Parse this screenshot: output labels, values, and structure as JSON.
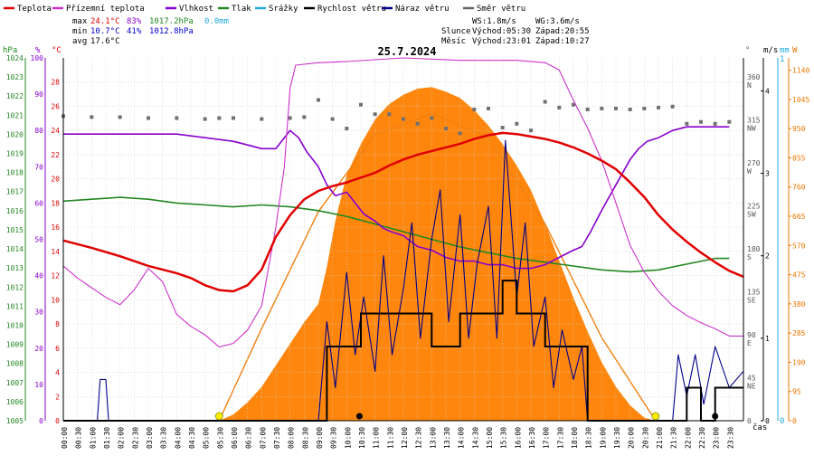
{
  "chart_data": {
    "type": "line",
    "title": "25.7.2024",
    "xlabel": "čas",
    "legend": [
      {
        "name": "Teplota",
        "color": "#e00000"
      },
      {
        "name": "Přízemní teplota",
        "color": "#cc33cc"
      },
      {
        "name": "Vlhkost",
        "color": "#8800cc"
      },
      {
        "name": "Tlak",
        "color": "#228822"
      },
      {
        "name": "Srážky",
        "color": "#22aadd"
      },
      {
        "name": "Rychlost větru",
        "color": "#000000"
      },
      {
        "name": "Náraz větru",
        "color": "#000088"
      },
      {
        "name": "Směr větru",
        "color": "#666666"
      }
    ],
    "stats": {
      "max": {
        "label": "max",
        "temp": "24.1°C",
        "hum": "83%",
        "press": "1017.2hPa",
        "rain": "0.0mm"
      },
      "min": {
        "label": "min",
        "temp": "10.7°C",
        "hum": "41%",
        "press": "1012.8hPa"
      },
      "avg": {
        "label": "avg",
        "temp": "17.6°C"
      }
    },
    "info": {
      "ws": "WS:1.8m/s",
      "wg": "WG:3.6m/s",
      "sun_label": "Slunce",
      "sunrise": "Východ:05:30",
      "sunset": "Západ:20:55",
      "moon_label": "Měsíc",
      "moonrise": "Východ:23:01",
      "moonset": "Západ:10:27"
    },
    "x_ticks": [
      "00:00",
      "00:30",
      "01:00",
      "01:30",
      "02:00",
      "02:30",
      "03:00",
      "03:30",
      "04:00",
      "04:30",
      "05:00",
      "05:30",
      "06:00",
      "06:30",
      "07:00",
      "07:30",
      "08:00",
      "08:30",
      "09:00",
      "09:30",
      "10:00",
      "10:30",
      "11:00",
      "11:30",
      "12:00",
      "12:30",
      "13:00",
      "13:30",
      "14:00",
      "14:30",
      "15:00",
      "15:30",
      "16:00",
      "16:30",
      "17:00",
      "17:30",
      "18:00",
      "18:30",
      "19:00",
      "19:30",
      "20:00",
      "20:30",
      "21:00",
      "21:30",
      "22:00",
      "22:30",
      "23:00",
      "23:30"
    ],
    "axes": {
      "pressure": {
        "unit": "hPa",
        "min": 1005,
        "max": 1024,
        "ticks": [
          1005,
          1006,
          1007,
          1008,
          1009,
          1010,
          1011,
          1012,
          1013,
          1014,
          1015,
          1016,
          1017,
          1018,
          1019,
          1020,
          1021,
          1022,
          1023,
          1024
        ]
      },
      "humidity": {
        "unit": "%",
        "min": 0,
        "max": 100,
        "ticks": [
          0,
          10,
          20,
          30,
          40,
          50,
          60,
          70,
          80,
          90,
          100
        ]
      },
      "temperature": {
        "unit": "°C",
        "min": 0,
        "max": 30,
        "ticks": [
          0,
          2,
          4,
          6,
          8,
          10,
          12,
          14,
          16,
          18,
          20,
          22,
          24,
          26,
          28
        ]
      },
      "direction": {
        "unit": "°",
        "min": 0,
        "max": 380,
        "ticks": [
          {
            "v": 0,
            "l": "0"
          },
          {
            "v": 45,
            "l": "45 NE"
          },
          {
            "v": 90,
            "l": "90 E"
          },
          {
            "v": 135,
            "l": "135 SE"
          },
          {
            "v": 180,
            "l": "180 S"
          },
          {
            "v": 225,
            "l": "225 SW"
          },
          {
            "v": 270,
            "l": "270 W"
          },
          {
            "v": 315,
            "l": "315 NW"
          },
          {
            "v": 360,
            "l": "360 N"
          }
        ]
      },
      "wind": {
        "unit": "m/s",
        "min": 0,
        "max": 4.4,
        "ticks": [
          0,
          1,
          2,
          3,
          4
        ]
      },
      "rain": {
        "unit": "mm",
        "value": "1",
        "zero": "0"
      },
      "solar": {
        "unit": "W",
        "min": 0,
        "max": 1180,
        "ticks": [
          0,
          95,
          190,
          285,
          380,
          475,
          570,
          665,
          760,
          855,
          950,
          1045,
          1140
        ]
      }
    },
    "series": {
      "temperature": [
        [
          0,
          14.9
        ],
        [
          1,
          14.3
        ],
        [
          2,
          13.6
        ],
        [
          3,
          12.8
        ],
        [
          4,
          12.2
        ],
        [
          4.5,
          11.8
        ],
        [
          5,
          11.2
        ],
        [
          5.5,
          10.8
        ],
        [
          6,
          10.7
        ],
        [
          6.5,
          11.2
        ],
        [
          7,
          12.5
        ],
        [
          7.5,
          15.2
        ],
        [
          8,
          17.0
        ],
        [
          8.5,
          18.3
        ],
        [
          9,
          19.0
        ],
        [
          9.5,
          19.4
        ],
        [
          10,
          19.7
        ],
        [
          10.5,
          20.1
        ],
        [
          11,
          20.5
        ],
        [
          11.5,
          21.1
        ],
        [
          12,
          21.6
        ],
        [
          12.5,
          22.0
        ],
        [
          13,
          22.3
        ],
        [
          13.5,
          22.6
        ],
        [
          14,
          22.9
        ],
        [
          14.5,
          23.3
        ],
        [
          15,
          23.6
        ],
        [
          15.5,
          23.8
        ],
        [
          16,
          23.7
        ],
        [
          16.5,
          23.5
        ],
        [
          17,
          23.3
        ],
        [
          17.5,
          23.0
        ],
        [
          18,
          22.6
        ],
        [
          18.5,
          22.1
        ],
        [
          19,
          21.5
        ],
        [
          19.5,
          20.8
        ],
        [
          20,
          19.7
        ],
        [
          20.5,
          18.5
        ],
        [
          21,
          17.0
        ],
        [
          21.5,
          15.8
        ],
        [
          22,
          14.8
        ],
        [
          22.5,
          13.9
        ],
        [
          23,
          13.1
        ],
        [
          23.5,
          12.4
        ],
        [
          24,
          11.9
        ]
      ],
      "ground_temperature": [
        [
          0,
          12.8
        ],
        [
          0.5,
          11.8
        ],
        [
          1,
          11.0
        ],
        [
          1.5,
          10.2
        ],
        [
          2,
          9.6
        ],
        [
          2.5,
          10.8
        ],
        [
          3,
          12.6
        ],
        [
          3.5,
          11.5
        ],
        [
          4,
          8.8
        ],
        [
          4.5,
          7.8
        ],
        [
          5,
          7.1
        ],
        [
          5.5,
          6.1
        ],
        [
          6,
          6.4
        ],
        [
          6.5,
          7.5
        ],
        [
          7,
          9.5
        ],
        [
          7.5,
          16.0
        ],
        [
          7.8,
          21.0
        ],
        [
          8,
          27.5
        ],
        [
          8.2,
          29.4
        ],
        [
          9,
          29.6
        ],
        [
          10,
          29.7
        ],
        [
          12,
          30.0
        ],
        [
          14,
          29.8
        ],
        [
          16,
          29.8
        ],
        [
          17,
          29.6
        ],
        [
          17.5,
          29.0
        ],
        [
          18,
          26.5
        ],
        [
          18.5,
          24.2
        ],
        [
          19,
          21.5
        ],
        [
          19.5,
          18.0
        ],
        [
          20,
          14.5
        ],
        [
          20.5,
          12.3
        ],
        [
          21,
          10.7
        ],
        [
          21.5,
          9.5
        ],
        [
          22,
          8.7
        ],
        [
          22.5,
          8.1
        ],
        [
          23,
          7.6
        ],
        [
          23.5,
          7.0
        ],
        [
          24,
          7.0
        ]
      ],
      "humidity": [
        [
          0,
          79
        ],
        [
          1,
          79
        ],
        [
          2,
          79
        ],
        [
          3,
          79
        ],
        [
          4,
          79
        ],
        [
          5,
          78
        ],
        [
          6,
          77
        ],
        [
          6.5,
          76
        ],
        [
          7,
          75
        ],
        [
          7.5,
          75
        ],
        [
          8,
          80
        ],
        [
          8.3,
          78
        ],
        [
          8.6,
          74
        ],
        [
          9,
          70
        ],
        [
          9.3,
          65
        ],
        [
          9.6,
          62
        ],
        [
          10,
          63
        ],
        [
          10.3,
          60
        ],
        [
          10.6,
          57
        ],
        [
          11,
          55
        ],
        [
          11.3,
          53
        ],
        [
          11.6,
          52
        ],
        [
          12,
          51
        ],
        [
          12.5,
          48
        ],
        [
          13,
          47
        ],
        [
          13.5,
          45
        ],
        [
          14,
          44
        ],
        [
          14.5,
          44
        ],
        [
          15,
          43
        ],
        [
          15.5,
          43
        ],
        [
          16,
          42
        ],
        [
          16.5,
          42
        ],
        [
          17,
          43
        ],
        [
          17.5,
          45
        ],
        [
          18,
          47
        ],
        [
          18.3,
          48
        ],
        [
          18.6,
          52
        ],
        [
          19,
          58
        ],
        [
          19.5,
          65
        ],
        [
          20,
          72
        ],
        [
          20.3,
          75
        ],
        [
          20.6,
          77
        ],
        [
          21,
          78
        ],
        [
          21.5,
          80
        ],
        [
          22,
          81
        ],
        [
          23,
          81
        ],
        [
          23.5,
          81
        ]
      ],
      "pressure": [
        [
          0,
          1016.5
        ],
        [
          1,
          1016.6
        ],
        [
          2,
          1016.7
        ],
        [
          3,
          1016.6
        ],
        [
          4,
          1016.4
        ],
        [
          5,
          1016.3
        ],
        [
          6,
          1016.2
        ],
        [
          7,
          1016.3
        ],
        [
          8,
          1016.2
        ],
        [
          9,
          1016.0
        ],
        [
          10,
          1015.7
        ],
        [
          11,
          1015.3
        ],
        [
          12,
          1014.9
        ],
        [
          13,
          1014.5
        ],
        [
          14,
          1014.1
        ],
        [
          15,
          1013.8
        ],
        [
          16,
          1013.5
        ],
        [
          17,
          1013.3
        ],
        [
          18,
          1013.1
        ],
        [
          19,
          1012.9
        ],
        [
          20,
          1012.8
        ],
        [
          21,
          1012.9
        ],
        [
          22,
          1013.2
        ],
        [
          23,
          1013.5
        ],
        [
          23.5,
          1013.5
        ]
      ],
      "solar": [
        [
          5.5,
          0
        ],
        [
          6,
          20
        ],
        [
          6.5,
          60
        ],
        [
          7,
          110
        ],
        [
          7.5,
          180
        ],
        [
          8,
          250
        ],
        [
          8.5,
          320
        ],
        [
          9,
          380
        ],
        [
          9.3,
          500
        ],
        [
          9.6,
          650
        ],
        [
          10,
          800
        ],
        [
          10.5,
          900
        ],
        [
          11,
          980
        ],
        [
          11.5,
          1030
        ],
        [
          12,
          1060
        ],
        [
          12.5,
          1080
        ],
        [
          13,
          1085
        ],
        [
          13.5,
          1070
        ],
        [
          14,
          1050
        ],
        [
          14.5,
          1010
        ],
        [
          15,
          960
        ],
        [
          15.5,
          900
        ],
        [
          16,
          830
        ],
        [
          16.5,
          750
        ],
        [
          17,
          640
        ],
        [
          17.5,
          520
        ],
        [
          18,
          400
        ],
        [
          18.5,
          290
        ],
        [
          19,
          190
        ],
        [
          19.5,
          110
        ],
        [
          20,
          50
        ],
        [
          20.5,
          10
        ],
        [
          20.9,
          0
        ]
      ],
      "solar_clear": [
        [
          5.5,
          0
        ],
        [
          7,
          300
        ],
        [
          9,
          680
        ],
        [
          11,
          930
        ],
        [
          13,
          1000
        ],
        [
          15,
          920
        ],
        [
          17,
          640
        ],
        [
          19,
          270
        ],
        [
          20.9,
          0
        ]
      ],
      "wind_speed": [
        [
          0,
          0
        ],
        [
          9.2,
          0
        ],
        [
          9.3,
          0.9
        ],
        [
          10,
          0.9
        ],
        [
          10.5,
          1.3
        ],
        [
          12.5,
          1.3
        ],
        [
          13,
          0.9
        ],
        [
          13.5,
          0.9
        ],
        [
          14,
          1.3
        ],
        [
          15,
          1.3
        ],
        [
          15.5,
          1.7
        ],
        [
          16,
          1.3
        ],
        [
          17,
          0.9
        ],
        [
          18,
          0.9
        ],
        [
          18.5,
          0
        ],
        [
          21.5,
          0
        ],
        [
          22,
          0.4
        ],
        [
          22.5,
          0
        ],
        [
          23,
          0.4
        ],
        [
          24,
          0.4
        ]
      ],
      "wind_gust": [
        [
          0,
          0
        ],
        [
          1.2,
          0
        ],
        [
          1.3,
          0.5
        ],
        [
          1.5,
          0.5
        ],
        [
          1.6,
          0
        ],
        [
          9,
          0
        ],
        [
          9.3,
          1.2
        ],
        [
          9.6,
          0.4
        ],
        [
          10,
          1.8
        ],
        [
          10.3,
          0.8
        ],
        [
          10.6,
          1.5
        ],
        [
          11,
          0.6
        ],
        [
          11.3,
          2.0
        ],
        [
          11.6,
          0.8
        ],
        [
          12,
          1.6
        ],
        [
          12.3,
          2.4
        ],
        [
          12.6,
          1.0
        ],
        [
          13,
          2.2
        ],
        [
          13.3,
          2.8
        ],
        [
          13.6,
          1.2
        ],
        [
          14,
          2.5
        ],
        [
          14.3,
          1.0
        ],
        [
          14.6,
          1.9
        ],
        [
          15,
          2.6
        ],
        [
          15.3,
          1.0
        ],
        [
          15.6,
          3.4
        ],
        [
          16,
          1.5
        ],
        [
          16.3,
          2.4
        ],
        [
          16.6,
          0.9
        ],
        [
          17,
          1.5
        ],
        [
          17.3,
          0.4
        ],
        [
          17.6,
          1.1
        ],
        [
          18,
          0.5
        ],
        [
          18.3,
          0.9
        ],
        [
          18.5,
          0
        ],
        [
          21.5,
          0
        ],
        [
          21.7,
          0.8
        ],
        [
          22,
          0.3
        ],
        [
          22.3,
          0.8
        ],
        [
          22.6,
          0.2
        ],
        [
          23,
          0.9
        ],
        [
          23.5,
          0.4
        ],
        [
          24,
          0.6
        ]
      ],
      "wind_direction": [
        [
          0,
          319
        ],
        [
          1,
          318
        ],
        [
          2,
          318
        ],
        [
          3,
          317
        ],
        [
          4,
          317
        ],
        [
          5,
          316
        ],
        [
          5.5,
          317
        ],
        [
          6,
          317
        ],
        [
          7,
          316
        ],
        [
          8,
          317
        ],
        [
          8.5,
          318
        ],
        [
          9,
          336
        ],
        [
          9.5,
          316
        ],
        [
          10,
          306
        ],
        [
          10.5,
          331
        ],
        [
          11,
          321
        ],
        [
          11.5,
          321
        ],
        [
          12,
          316
        ],
        [
          12.5,
          311
        ],
        [
          13,
          317
        ],
        [
          13.5,
          306
        ],
        [
          14,
          301
        ],
        [
          14.5,
          326
        ],
        [
          15,
          327
        ],
        [
          15.5,
          307
        ],
        [
          16,
          311
        ],
        [
          16.5,
          304
        ],
        [
          17,
          334
        ],
        [
          17.5,
          328
        ],
        [
          18,
          331
        ],
        [
          18.5,
          326
        ],
        [
          19,
          327
        ],
        [
          19.5,
          327
        ],
        [
          20,
          326
        ],
        [
          20.5,
          327
        ],
        [
          21,
          328
        ],
        [
          21.5,
          329
        ],
        [
          22,
          311
        ],
        [
          22.5,
          313
        ],
        [
          23,
          311
        ],
        [
          23.5,
          313
        ]
      ],
      "sun_markers": [
        5.5,
        20.9
      ],
      "moon_markers": [
        10.45,
        23.0
      ]
    }
  }
}
